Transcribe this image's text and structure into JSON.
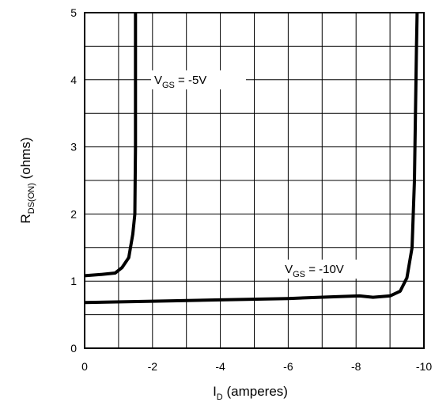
{
  "chart_data": {
    "type": "line",
    "title": "",
    "xlabel": {
      "main": "I",
      "sub": "D",
      "rest": " (amperes)"
    },
    "ylabel": {
      "main": "R",
      "sub": "DS(ON)",
      "rest": " (ohms)"
    },
    "xlim": [
      0,
      -10
    ],
    "ylim": [
      0,
      5
    ],
    "x_major_ticks": [
      0,
      -2,
      -4,
      -6,
      -8,
      -10
    ],
    "x_tick_labels": [
      "0",
      "-2",
      "-4",
      "-6",
      "-8",
      "-10"
    ],
    "y_major_ticks": [
      0,
      1,
      2,
      3,
      4,
      5
    ],
    "y_tick_labels": [
      "0",
      "1",
      "2",
      "3",
      "4",
      "5"
    ],
    "x_grid_step": 1,
    "y_grid_lines": [
      0.5,
      1,
      1.5,
      2,
      2.5,
      3,
      3.5,
      4,
      4.5
    ],
    "grid": true,
    "series": [
      {
        "name": "V_GS = -5V",
        "label": {
          "main": "V",
          "sub": "GS",
          "rest": " = -5V"
        },
        "x": [
          0,
          -0.5,
          -0.9,
          -1.1,
          -1.3,
          -1.42,
          -1.48,
          -1.5,
          -1.5,
          -1.5
        ],
        "y": [
          1.08,
          1.1,
          1.12,
          1.2,
          1.35,
          1.7,
          2.0,
          3.0,
          4.0,
          5.0
        ]
      },
      {
        "name": "V_GS = -10V",
        "label": {
          "main": "V",
          "sub": "GS",
          "rest": " = -10V"
        },
        "x": [
          0,
          -2,
          -4,
          -6,
          -7.5,
          -8.1,
          -8.5,
          -9.0,
          -9.3,
          -9.5,
          -9.65,
          -9.72,
          -9.75,
          -9.78,
          -9.8
        ],
        "y": [
          0.68,
          0.7,
          0.72,
          0.74,
          0.77,
          0.78,
          0.76,
          0.78,
          0.85,
          1.05,
          1.5,
          2.5,
          3.5,
          4.5,
          5.0
        ]
      }
    ]
  }
}
